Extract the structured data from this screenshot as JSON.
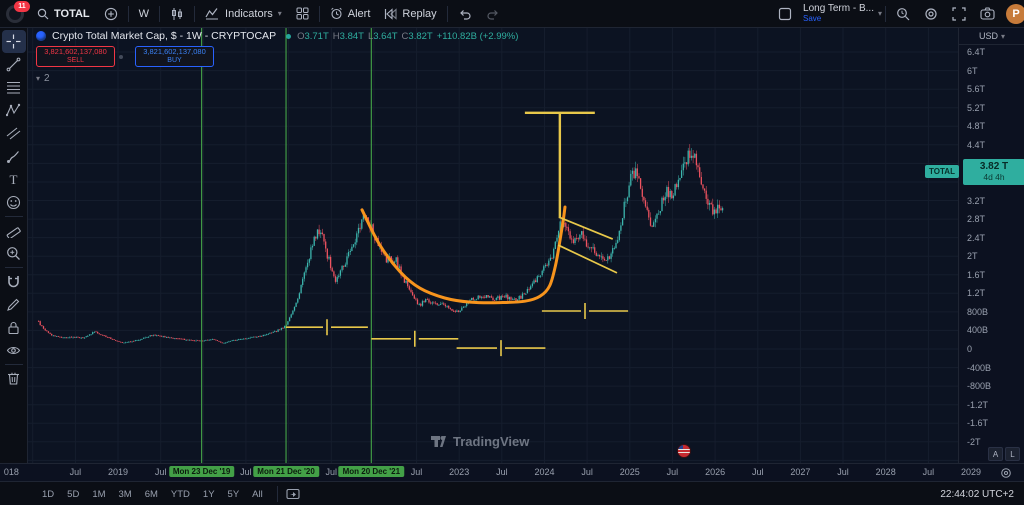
{
  "icons": [
    "search-icon",
    "plus-circle-icon",
    "candles-icon",
    "indicators-icon",
    "chevron-down-icon",
    "grid-layout-icon",
    "alert-clock-icon",
    "replay-icon",
    "undo-icon",
    "redo-icon",
    "layout-box-icon",
    "quick-search-icon",
    "settings-gear-icon",
    "fullscreen-icon",
    "camera-icon",
    "crosshair-icon",
    "trend-line-icon",
    "fib-retracement-icon",
    "pattern-icon",
    "parallel-channel-icon",
    "brush-icon",
    "text-tool-icon",
    "emoji-icon",
    "ruler-icon",
    "zoom-in-icon",
    "magnet-icon",
    "pencil-icon",
    "lock-icon",
    "eye-icon",
    "trash-icon",
    "tradingview-logo",
    "us-flag-event-icon",
    "axis-gear-icon",
    "go-to-date-icon"
  ],
  "topbar": {
    "badge": "11",
    "symbol": "TOTAL",
    "interval": "W",
    "indicators": "Indicators",
    "alert": "Alert",
    "replay": "Replay",
    "layout_name": "Long Term - B...",
    "save_label": "Save",
    "publish_initial": "P"
  },
  "symbol_row": {
    "title": "Crypto Total Market Cap, $ - 1W - CRYPTOCAP",
    "ohlc": {
      "o": {
        "k": "O",
        "v": "3.71T"
      },
      "h": {
        "k": "H",
        "v": "3.84T"
      },
      "l": {
        "k": "L",
        "v": "3.64T"
      },
      "c": {
        "k": "C",
        "v": "3.82T"
      },
      "chg": "+110.82B (+2.99%)"
    }
  },
  "trade": {
    "sell": {
      "value": "3,821,602,137,080",
      "label": "SELL"
    },
    "buy": {
      "value": "3,821,602,137,080",
      "label": "BUY"
    }
  },
  "tree_count": "2",
  "left_toolbar": {
    "tools": [
      "crosshair",
      "trend-line",
      "fib-retracement",
      "pattern",
      "parallel-channel",
      "brush",
      "text",
      "emoji",
      "ruler",
      "zoom-in",
      "magnet",
      "pencil",
      "lock",
      "eye",
      "trash"
    ]
  },
  "price_axis": {
    "currency": "USD",
    "auto": "A",
    "log": "L",
    "label": {
      "symbol": "TOTAL",
      "price": "3.82 T",
      "countdown": "4d 4h",
      "value": 3.82
    }
  },
  "bottom_bar": {
    "ranges": [
      "1D",
      "5D",
      "1M",
      "3M",
      "6M",
      "YTD",
      "1Y",
      "5Y",
      "All"
    ],
    "timestamp": "22:44:02 UTC+2"
  },
  "watermark": "TradingView",
  "chart_data": {
    "type": "candlestick",
    "title": "Crypto Total Market Cap, $ - 1W - CRYPTOCAP",
    "interval": "1W",
    "currency": "USD",
    "x_range_years": [
      2017.7,
      2029.2
    ],
    "y_range_trillions": [
      -2.5,
      6.6
    ],
    "grid": true,
    "colors": {
      "up": "#3cb6ae",
      "down": "#ef5360",
      "grid": "#1c2535",
      "green_line": "#43a047",
      "yellow": "#e8c84a",
      "orange": "#f7941d",
      "background": "#0c1322"
    },
    "y_ticks": [
      {
        "v": 6.4,
        "label": "6.4T"
      },
      {
        "v": 6,
        "label": "6T"
      },
      {
        "v": 5.6,
        "label": "5.6T"
      },
      {
        "v": 5.2,
        "label": "5.2T"
      },
      {
        "v": 4.8,
        "label": "4.8T"
      },
      {
        "v": 4.4,
        "label": "4.4T"
      },
      {
        "v": 4,
        "label": "4T"
      },
      {
        "v": 3.2,
        "label": "3.2T"
      },
      {
        "v": 2.8,
        "label": "2.8T"
      },
      {
        "v": 2.4,
        "label": "2.4T"
      },
      {
        "v": 2,
        "label": "2T"
      },
      {
        "v": 1.6,
        "label": "1.6T"
      },
      {
        "v": 1.2,
        "label": "1.2T"
      },
      {
        "v": 0.8,
        "label": "800B"
      },
      {
        "v": 0.4,
        "label": "400B"
      },
      {
        "v": 0,
        "label": "0"
      },
      {
        "v": -0.4,
        "label": "-400B"
      },
      {
        "v": -0.8,
        "label": "-800B"
      },
      {
        "v": -1.2,
        "label": "-1.2T"
      },
      {
        "v": -1.6,
        "label": "-1.6T"
      },
      {
        "v": -2,
        "label": "-2T"
      }
    ],
    "x_ticks": [
      {
        "t": 2017.75,
        "label": "018"
      },
      {
        "t": 2018.5,
        "label": "Jul"
      },
      {
        "t": 2019,
        "label": "2019"
      },
      {
        "t": 2019.5,
        "label": "Jul"
      },
      {
        "t": 2019.98,
        "label": "Mon 23 Dec '19",
        "event": true
      },
      {
        "t": 2020.5,
        "label": "Jul"
      },
      {
        "t": 2020.97,
        "label": "Mon 21 Dec '20",
        "event": true
      },
      {
        "t": 2021.5,
        "label": "Jul"
      },
      {
        "t": 2021.97,
        "label": "Mon 20 Dec '21",
        "event": true
      },
      {
        "t": 2022.5,
        "label": "Jul"
      },
      {
        "t": 2023,
        "label": "2023"
      },
      {
        "t": 2023.5,
        "label": "Jul"
      },
      {
        "t": 2024,
        "label": "2024"
      },
      {
        "t": 2024.5,
        "label": "Jul"
      },
      {
        "t": 2025,
        "label": "2025"
      },
      {
        "t": 2025.5,
        "label": "Jul"
      },
      {
        "t": 2026,
        "label": "2026"
      },
      {
        "t": 2026.5,
        "label": "Jul"
      },
      {
        "t": 2027,
        "label": "2027"
      },
      {
        "t": 2027.5,
        "label": "Jul"
      },
      {
        "t": 2028,
        "label": "2028"
      },
      {
        "t": 2028.5,
        "label": "Jul"
      },
      {
        "t": 2029,
        "label": "2029"
      }
    ],
    "anchors": [
      [
        2018.05,
        0.62
      ],
      [
        2018.12,
        0.45
      ],
      [
        2018.22,
        0.3
      ],
      [
        2018.35,
        0.25
      ],
      [
        2018.5,
        0.26
      ],
      [
        2018.6,
        0.24
      ],
      [
        2018.72,
        0.37
      ],
      [
        2018.82,
        0.3
      ],
      [
        2018.95,
        0.2
      ],
      [
        2019.05,
        0.14
      ],
      [
        2019.2,
        0.18
      ],
      [
        2019.42,
        0.31
      ],
      [
        2019.6,
        0.25
      ],
      [
        2019.8,
        0.2
      ],
      [
        2019.98,
        0.18
      ],
      [
        2020.1,
        0.22
      ],
      [
        2020.22,
        0.13
      ],
      [
        2020.35,
        0.19
      ],
      [
        2020.55,
        0.25
      ],
      [
        2020.7,
        0.29
      ],
      [
        2020.85,
        0.38
      ],
      [
        2020.97,
        0.5
      ],
      [
        2021.03,
        0.75
      ],
      [
        2021.1,
        1.05
      ],
      [
        2021.2,
        1.75
      ],
      [
        2021.3,
        2.35
      ],
      [
        2021.37,
        2.6
      ],
      [
        2021.45,
        2.05
      ],
      [
        2021.55,
        1.45
      ],
      [
        2021.63,
        1.75
      ],
      [
        2021.72,
        2.1
      ],
      [
        2021.8,
        2.45
      ],
      [
        2021.88,
        2.95
      ],
      [
        2021.95,
        2.7
      ],
      [
        2022.05,
        2.2
      ],
      [
        2022.15,
        1.9
      ],
      [
        2022.25,
        1.95
      ],
      [
        2022.35,
        1.5
      ],
      [
        2022.45,
        1.2
      ],
      [
        2022.52,
        0.92
      ],
      [
        2022.62,
        1.08
      ],
      [
        2022.72,
        0.95
      ],
      [
        2022.82,
        0.98
      ],
      [
        2022.92,
        0.82
      ],
      [
        2023.0,
        0.8
      ],
      [
        2023.12,
        1.05
      ],
      [
        2023.25,
        1.15
      ],
      [
        2023.4,
        1.08
      ],
      [
        2023.55,
        1.12
      ],
      [
        2023.68,
        1.06
      ],
      [
        2023.8,
        1.25
      ],
      [
        2023.9,
        1.48
      ],
      [
        2024.0,
        1.75
      ],
      [
        2024.1,
        2.05
      ],
      [
        2024.18,
        2.7
      ],
      [
        2024.25,
        2.6
      ],
      [
        2024.33,
        2.3
      ],
      [
        2024.42,
        2.5
      ],
      [
        2024.5,
        2.28
      ],
      [
        2024.6,
        2.1
      ],
      [
        2024.7,
        1.9
      ],
      [
        2024.78,
        1.98
      ],
      [
        2024.85,
        2.35
      ],
      [
        2024.93,
        3.05
      ],
      [
        2025.0,
        3.6
      ],
      [
        2025.06,
        3.82
      ],
      [
        2025.13,
        3.45
      ],
      [
        2025.2,
        2.9
      ],
      [
        2025.28,
        2.65
      ],
      [
        2025.35,
        3.0
      ],
      [
        2025.42,
        3.4
      ],
      [
        2025.5,
        3.3
      ],
      [
        2025.58,
        3.62
      ],
      [
        2025.66,
        4.05
      ],
      [
        2025.73,
        4.25
      ],
      [
        2025.79,
        3.95
      ],
      [
        2025.85,
        3.55
      ],
      [
        2025.92,
        3.15
      ],
      [
        2025.98,
        2.92
      ],
      [
        2026.04,
        3.12
      ],
      [
        2026.1,
        3.02
      ]
    ],
    "drawings": {
      "vertical_lines": {
        "t": [
          2019.98,
          2020.97,
          2021.97
        ]
      },
      "t_shape": {
        "h": {
          "v": 5.09,
          "t1": 2023.77,
          "t2": 2024.59
        },
        "stem": {
          "t": 2024.18,
          "v1": 5.09,
          "v2": 2.82
        }
      },
      "flag": {
        "upper": [
          [
            2024.17,
            2.84
          ],
          [
            2024.8,
            2.37
          ]
        ],
        "lower": [
          [
            2024.16,
            2.24
          ],
          [
            2024.85,
            1.64
          ]
        ]
      },
      "cup_curve": [
        [
          2021.86,
          3.0
        ],
        [
          2022.07,
          2.24
        ],
        [
          2022.31,
          1.66
        ],
        [
          2022.54,
          1.31
        ],
        [
          2022.83,
          1.1
        ],
        [
          2023.13,
          1.01
        ],
        [
          2023.48,
          1.0
        ],
        [
          2023.77,
          1.03
        ],
        [
          2023.95,
          1.14
        ],
        [
          2024.06,
          1.36
        ],
        [
          2024.13,
          1.81
        ],
        [
          2024.18,
          2.33
        ],
        [
          2024.22,
          2.78
        ],
        [
          2024.24,
          3.06
        ]
      ],
      "measures": [
        {
          "t1": 2020.97,
          "t2": 2021.93,
          "v": 0.47
        },
        {
          "t1": 2021.97,
          "t2": 2022.99,
          "v": 0.22
        },
        {
          "t1": 2022.97,
          "t2": 2024.01,
          "v": 0.02
        },
        {
          "t1": 2023.97,
          "t2": 2024.98,
          "v": 0.82
        }
      ],
      "event_flag_t": 2025.62
    }
  }
}
